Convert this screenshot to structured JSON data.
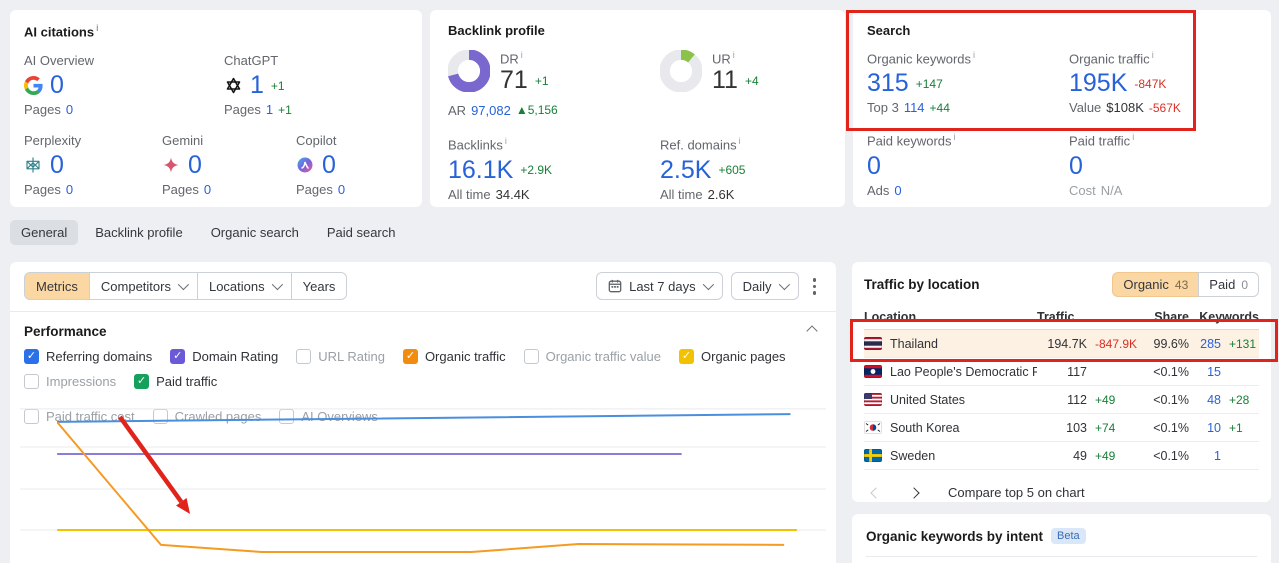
{
  "misc": {
    "info_glyph": "i"
  },
  "colors": {
    "accent_blue": "#2862d9",
    "green": "#188038",
    "red": "#d93025",
    "annotation_red": "#e0241b",
    "highlight_row": "#fcf1e2",
    "segment_active": "#fbd7a3",
    "dr_donut": "#7b68ce",
    "ur_donut": "#8bc34a"
  },
  "ai_citations": {
    "title": "AI citations",
    "items": [
      {
        "label": "AI Overview",
        "icon": "google-g-icon",
        "value": "0",
        "delta": "",
        "pages_label": "Pages",
        "pages": "0",
        "pages_delta": ""
      },
      {
        "label": "ChatGPT",
        "icon": "openai-chatgpt-icon",
        "value": "1",
        "delta": "+1",
        "pages_label": "Pages",
        "pages": "1",
        "pages_delta": "+1"
      },
      {
        "label": "Perplexity",
        "icon": "perplexity-icon",
        "value": "0",
        "delta": "",
        "pages_label": "Pages",
        "pages": "0",
        "pages_delta": ""
      },
      {
        "label": "Gemini",
        "icon": "gemini-sparkle-icon",
        "value": "0",
        "delta": "",
        "pages_label": "Pages",
        "pages": "0",
        "pages_delta": ""
      },
      {
        "label": "Copilot",
        "icon": "copilot-icon",
        "value": "0",
        "delta": "",
        "pages_label": "Pages",
        "pages": "0",
        "pages_delta": ""
      }
    ]
  },
  "backlink_profile": {
    "title": "Backlink profile",
    "dr": {
      "label": "DR",
      "value": "71",
      "delta": "+1",
      "percent": 71,
      "color": "#7b68ce"
    },
    "ar": {
      "label": "AR",
      "value": "97,082",
      "delta": "▲5,156"
    },
    "ur": {
      "label": "UR",
      "value": "11",
      "delta": "+4",
      "percent": 11,
      "color": "#8bc34a"
    },
    "backlinks": {
      "label": "Backlinks",
      "value": "16.1K",
      "delta": "+2.9K",
      "alltime_label": "All time",
      "alltime": "34.4K"
    },
    "ref_domains": {
      "label": "Ref. domains",
      "value": "2.5K",
      "delta": "+605",
      "alltime_label": "All time",
      "alltime": "2.6K"
    }
  },
  "search": {
    "title": "Search",
    "organic_keywords": {
      "label": "Organic keywords",
      "value": "315",
      "delta": "+147",
      "delta_class": "pos",
      "sub_label": "Top 3",
      "sub_value": "114",
      "sub_delta": "+44",
      "sub_delta_class": "pos"
    },
    "organic_traffic": {
      "label": "Organic traffic",
      "value": "195K",
      "delta": "-847K",
      "delta_class": "neg",
      "sub_label": "Value",
      "sub_value": "$108K",
      "sub_delta": "-567K",
      "sub_delta_class": "neg"
    },
    "paid_keywords": {
      "label": "Paid keywords",
      "value": "0",
      "sub_label": "Ads",
      "sub_value": "0"
    },
    "paid_traffic": {
      "label": "Paid traffic",
      "value": "0",
      "sub_label": "Cost",
      "sub_value": "N/A"
    }
  },
  "tabs": [
    {
      "label": "General",
      "active": true
    },
    {
      "label": "Backlink profile",
      "active": false
    },
    {
      "label": "Organic search",
      "active": false
    },
    {
      "label": "Paid search",
      "active": false
    }
  ],
  "toolbar": {
    "metrics_label": "Metrics",
    "competitors_label": "Competitors",
    "locations_label": "Locations",
    "years_label": "Years",
    "date_range_label": "Last 7 days",
    "granularity_label": "Daily"
  },
  "performance": {
    "title": "Performance",
    "checkboxes": [
      {
        "label": "Referring domains",
        "checked": true,
        "color": "#2a70e8"
      },
      {
        "label": "Domain Rating",
        "checked": true,
        "color": "#6a5ad8"
      },
      {
        "label": "URL Rating",
        "checked": false,
        "color": ""
      },
      {
        "label": "Organic traffic",
        "checked": true,
        "color": "#f18c0e"
      },
      {
        "label": "Organic traffic value",
        "checked": false,
        "color": ""
      },
      {
        "label": "Organic pages",
        "checked": true,
        "color": "#f2c200"
      },
      {
        "label": "Impressions",
        "checked": false,
        "color": ""
      },
      {
        "label": "Paid traffic",
        "checked": true,
        "color": "#16a05d"
      },
      {
        "label": "Paid traffic cost",
        "checked": false,
        "color": ""
      },
      {
        "label": "Crawled pages",
        "checked": false,
        "color": ""
      },
      {
        "label": "AI Overviews",
        "checked": false,
        "color": ""
      }
    ]
  },
  "chart_data": {
    "type": "line",
    "title": "Performance",
    "x_axis_label": "Last 7 days, daily",
    "grid": true,
    "axes_note": "axis tick labels are cropped out of the screenshot; series positions are relative (percent of plot area, y down)",
    "gridlines_y_pct": [
      14,
      35.4,
      59,
      82
    ],
    "series": [
      {
        "name": "Referring domains",
        "color": "#4a8fdd",
        "points_pct": [
          [
            4.7,
            21.3
          ],
          [
            95.5,
            16.9
          ]
        ]
      },
      {
        "name": "Domain Rating",
        "color": "#8a7cd8",
        "points_pct": [
          [
            4.7,
            39.3
          ],
          [
            82.0,
            39.3
          ]
        ]
      },
      {
        "name": "Organic pages",
        "color": "#f2c200",
        "points_pct": [
          [
            4.7,
            82.0
          ],
          [
            96.3,
            82.0
          ]
        ]
      },
      {
        "name": "Organic traffic",
        "color": "#f59a23",
        "points_pct": [
          [
            4.7,
            21.9
          ],
          [
            17.5,
            90.4
          ],
          [
            30.0,
            94.4
          ],
          [
            56.0,
            94.4
          ],
          [
            69.3,
            89.9
          ],
          [
            94.7,
            90.4
          ]
        ]
      }
    ],
    "annotation": {
      "type": "arrow",
      "color": "#e0241b",
      "from_pct": [
        12.4,
        18.5
      ],
      "to_pct": [
        21.1,
        73.0
      ]
    }
  },
  "traffic_by_location": {
    "title": "Traffic by location",
    "toggle": {
      "organic_label": "Organic",
      "organic_count": "43",
      "paid_label": "Paid",
      "paid_count": "0"
    },
    "columns": {
      "location": "Location",
      "traffic": "Traffic",
      "share": "Share",
      "keywords": "Keywords"
    },
    "rows": [
      {
        "location": "Thailand",
        "flag": "thailand",
        "traffic": "194.7K",
        "traffic_delta": "-847.9K",
        "traffic_delta_class": "neg",
        "share": "99.6%",
        "keywords": "285",
        "keywords_delta": "+131",
        "highlighted": true
      },
      {
        "location": "Lao People's Democratic Rep",
        "flag": "laos",
        "traffic": "117",
        "traffic_delta": "",
        "traffic_delta_class": "pos",
        "share": "<0.1%",
        "keywords": "15",
        "keywords_delta": "",
        "highlighted": false
      },
      {
        "location": "United States",
        "flag": "united-states",
        "traffic": "112",
        "traffic_delta": "+49",
        "traffic_delta_class": "pos",
        "share": "<0.1%",
        "keywords": "48",
        "keywords_delta": "+28",
        "highlighted": false
      },
      {
        "location": "South Korea",
        "flag": "south-korea",
        "traffic": "103",
        "traffic_delta": "+74",
        "traffic_delta_class": "pos",
        "share": "<0.1%",
        "keywords": "10",
        "keywords_delta": "+1",
        "highlighted": false
      },
      {
        "location": "Sweden",
        "flag": "sweden",
        "traffic": "49",
        "traffic_delta": "+49",
        "traffic_delta_class": "pos",
        "share": "<0.1%",
        "keywords": "1",
        "keywords_delta": "",
        "highlighted": false
      }
    ],
    "footer": {
      "compare_label": "Compare top 5 on chart"
    }
  },
  "keywords_by_intent": {
    "title": "Organic keywords by intent",
    "badge": "Beta"
  }
}
